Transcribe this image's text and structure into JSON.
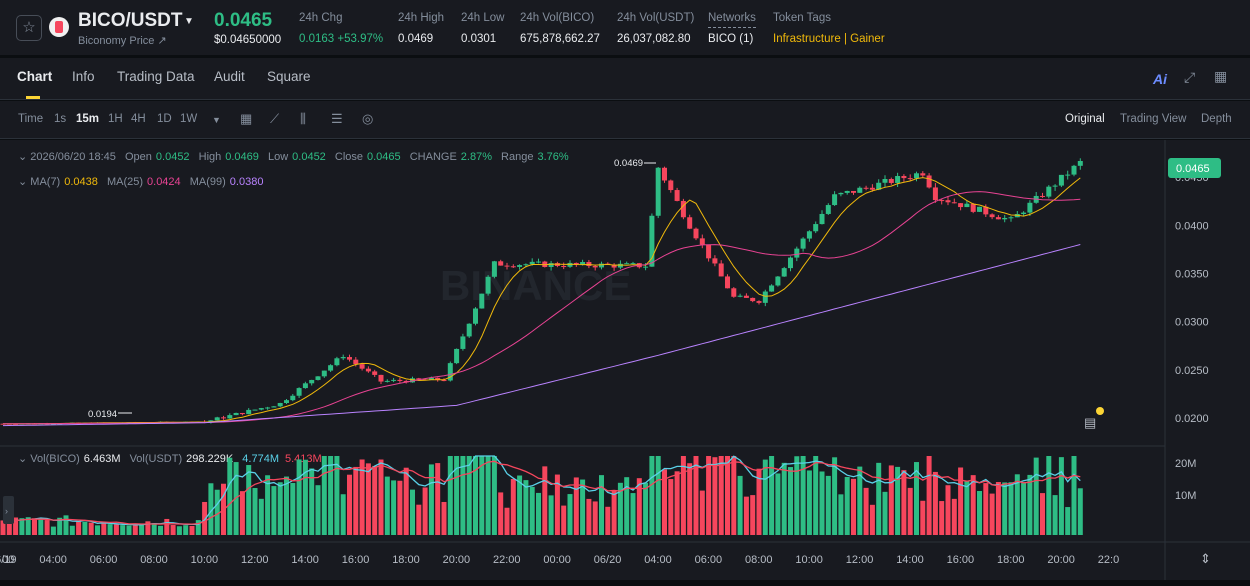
{
  "header": {
    "pair": "BICO/USDT",
    "name": "Biconomy Price ↗",
    "last_price": "0.0465",
    "last_price_usd": "$0.04650000",
    "stats": [
      {
        "label": "24h Chg",
        "value": "0.0163 +53.97%",
        "color": "#2ebd85"
      },
      {
        "label": "24h High",
        "value": "0.0469",
        "color": "#eaecef"
      },
      {
        "label": "24h Low",
        "value": "0.0301",
        "color": "#eaecef"
      },
      {
        "label": "24h Vol(BICO)",
        "value": "675,878,662.27",
        "color": "#eaecef"
      },
      {
        "label": "24h Vol(USDT)",
        "value": "26,037,082.80",
        "color": "#eaecef"
      },
      {
        "label": "Networks",
        "value": "BICO (1)",
        "color": "#eaecef"
      },
      {
        "label": "Token Tags",
        "value": "Infrastructure | Gainer",
        "color": "#f0b90b"
      }
    ]
  },
  "tabs": [
    "Chart",
    "Info",
    "Trading Data",
    "Audit",
    "Square"
  ],
  "toolbar": {
    "intervals": [
      "Time",
      "1s",
      "15m",
      "1H",
      "4H",
      "1D",
      "1W"
    ],
    "active_interval": "15m",
    "views": [
      "Original",
      "Trading View",
      "Depth"
    ],
    "active_view": "Original",
    "ai_label": "Ai"
  },
  "legend": {
    "date": "2026/06/20 18:45",
    "open_label": "Open",
    "open": "0.0452",
    "high_label": "High",
    "high": "0.0469",
    "low_label": "Low",
    "low": "0.0452",
    "close_label": "Close",
    "close": "0.0465",
    "change_label": "CHANGE",
    "change": "2.87%",
    "range_label": "Range",
    "range": "3.76%",
    "ma7_label": "MA(7)",
    "ma7": "0.0438",
    "ma25_label": "MA(25)",
    "ma25": "0.0424",
    "ma99_label": "MA(99)",
    "ma99": "0.0380",
    "vol_base_label": "Vol(BICO)",
    "vol_base": "6.463M",
    "vol_quote_label": "Vol(USDT)",
    "vol_quote": "298.229K",
    "vol_ma1": "4.774M",
    "vol_ma2": "5.413M"
  },
  "price_axis": [
    "0.0450",
    "0.0400",
    "0.0350",
    "0.0300",
    "0.0250",
    "0.0200"
  ],
  "price_label": "0.0465",
  "high_marker": "0.0469",
  "low_marker": "0.0194",
  "volume_axis": [
    "20M",
    "10M"
  ],
  "time_axis": [
    "00",
    "06/19",
    "04:00",
    "06:00",
    "08:00",
    "10:00",
    "12:00",
    "14:00",
    "16:00",
    "18:00",
    "20:00",
    "22:00",
    "00:00",
    "06/20",
    "04:00",
    "06:00",
    "08:00",
    "10:00",
    "12:00",
    "14:00",
    "16:00",
    "18:00",
    "20:00",
    "22:0"
  ],
  "watermark": "BINANCE",
  "colors": {
    "up": "#2ebd85",
    "down": "#f6465d",
    "ma7": "#f0b90b",
    "ma25": "#e84393",
    "ma99": "#b983ff",
    "volma1": "#5ad1e8",
    "volma2": "#f6465d"
  },
  "chart_data": {
    "type": "candlestick",
    "interval": "15m",
    "price_range": [
      0.0175,
      0.0475
    ],
    "anchors": [
      {
        "time": "06/19 00:00",
        "price": 0.0194
      },
      {
        "time": "06/19 08:00",
        "price": 0.0196
      },
      {
        "time": "06/19 11:00",
        "price": 0.0215
      },
      {
        "time": "06/19 13:30",
        "price": 0.0265
      },
      {
        "time": "06/19 15:00",
        "price": 0.0238
      },
      {
        "time": "06/19 17:30",
        "price": 0.024
      },
      {
        "time": "06/19 19:30",
        "price": 0.036
      },
      {
        "time": "06/20 01:30",
        "price": 0.0358
      },
      {
        "time": "06/20 02:00",
        "price": 0.046
      },
      {
        "time": "06/20 03:15",
        "price": 0.04
      },
      {
        "time": "06/20 05:00",
        "price": 0.0325
      },
      {
        "time": "06/20 06:00",
        "price": 0.0322
      },
      {
        "time": "06/20 09:00",
        "price": 0.043
      },
      {
        "time": "06/20 12:30",
        "price": 0.0455
      },
      {
        "time": "06/20 13:00",
        "price": 0.043
      },
      {
        "time": "06/20 16:00",
        "price": 0.0405
      },
      {
        "time": "06/20 18:45",
        "price": 0.0465
      }
    ],
    "ma99_anchors": [
      {
        "time": "06/19 00:00",
        "price": 0.0192
      },
      {
        "time": "06/19 08:00",
        "price": 0.0195
      },
      {
        "time": "06/19 18:00",
        "price": 0.0213
      },
      {
        "time": "06/20 02:00",
        "price": 0.0265
      },
      {
        "time": "06/20 10:00",
        "price": 0.032
      },
      {
        "time": "06/20 18:45",
        "price": 0.038
      }
    ],
    "volume_peak": "20M"
  }
}
